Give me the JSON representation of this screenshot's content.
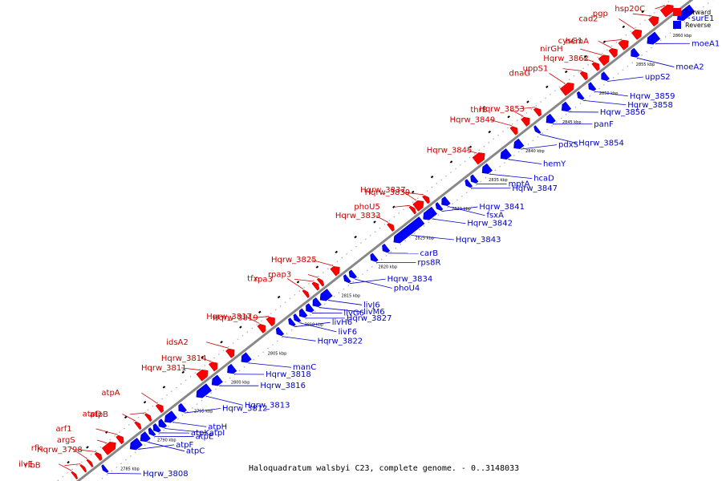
{
  "caption": "Haloquadratum walsbyi C23, complete genome. - 0..3148033",
  "legend": {
    "forward": {
      "label": "Forward",
      "color": "#ff0000"
    },
    "reverse": {
      "label": "Reverse",
      "color": "#0000ff"
    }
  },
  "colors": {
    "axis": "#888888",
    "fwd_line": "#cc0000",
    "rev_line": "#0000cc"
  },
  "ticks": [
    {
      "label": "2785 kbp",
      "kbp": 2785
    },
    {
      "label": "2790 kbp",
      "kbp": 2790
    },
    {
      "label": "2795 kbp",
      "kbp": 2795
    },
    {
      "label": "2800 kbp",
      "kbp": 2800
    },
    {
      "label": "2805 kbp",
      "kbp": 2805
    },
    {
      "label": "2810 kbp",
      "kbp": 2810
    },
    {
      "label": "2815 kbp",
      "kbp": 2815
    },
    {
      "label": "2820 kbp",
      "kbp": 2820
    },
    {
      "label": "2825 kbp",
      "kbp": 2825
    },
    {
      "label": "2830 kbp",
      "kbp": 2830
    },
    {
      "label": "2835 kbp",
      "kbp": 2835
    },
    {
      "label": "2840 kbp",
      "kbp": 2840
    },
    {
      "label": "2845 kbp",
      "kbp": 2845
    },
    {
      "label": "2850 kbp",
      "kbp": 2850
    },
    {
      "label": "2855 kbp",
      "kbp": 2855
    },
    {
      "label": "2860 kbp",
      "kbp": 2860
    }
  ],
  "forward_genes": [
    {
      "name": "hsp20C",
      "start": 2860.2,
      "end": 2861.6
    },
    {
      "name": "pgp",
      "start": 2858.6,
      "end": 2859.6
    },
    {
      "name": "cad2",
      "start": 2856.3,
      "end": 2857.3
    },
    {
      "name": "hemA",
      "start": 2854.5,
      "end": 2855.5
    },
    {
      "name": "cysG1",
      "start": 2853.2,
      "end": 2854.0
    },
    {
      "name": "nirGH",
      "start": 2851.8,
      "end": 2852.9
    },
    {
      "name": "Hqrw_3862",
      "start": 2850.9,
      "end": 2851.5
    },
    {
      "name": "uppS1",
      "start": 2849.3,
      "end": 2849.9
    },
    {
      "name": "dnaG",
      "start": 2846.6,
      "end": 2848.1
    },
    {
      "name": "Hqrw_3853",
      "start": 2843.0,
      "end": 2843.6
    },
    {
      "name": "thrB",
      "start": 2841.3,
      "end": 2842.1
    },
    {
      "name": "Hqrw_3849",
      "start": 2839.8,
      "end": 2840.4
    },
    {
      "name": "Hqrw_3845",
      "start": 2834.7,
      "end": 2836.0
    },
    {
      "name": "Hqrw_3839",
      "start": 2827.9,
      "end": 2828.4
    },
    {
      "name": "Hqrw_3837",
      "start": 2826.6,
      "end": 2827.7
    },
    {
      "name": "phoU5",
      "start": 2826.1,
      "end": 2826.5
    },
    {
      "name": "Hqrw_3833",
      "start": 2823.1,
      "end": 2823.6
    },
    {
      "name": "Hqrw_3825",
      "start": 2815.4,
      "end": 2816.3
    },
    {
      "name": "rpap3",
      "start": 2813.6,
      "end": 2814.0
    },
    {
      "name": "rpa3",
      "start": 2812.9,
      "end": 2813.4
    },
    {
      "name": "tfx",
      "start": 2811.6,
      "end": 2812.0
    },
    {
      "name": "Hqrw_3819",
      "start": 2806.7,
      "end": 2807.5
    },
    {
      "name": "Hqrw_3817",
      "start": 2805.5,
      "end": 2806.2
    },
    {
      "name": "idsA2",
      "start": 2801.2,
      "end": 2802.0
    },
    {
      "name": "Hqrw_3814",
      "start": 2798.9,
      "end": 2799.7
    },
    {
      "name": "Hqrw_3811",
      "start": 2797.2,
      "end": 2798.4
    },
    {
      "name": "atpA",
      "start": 2791.7,
      "end": 2792.3
    },
    {
      "name": "atpB",
      "start": 2790.2,
      "end": 2790.6
    },
    {
      "name": "atpD",
      "start": 2788.8,
      "end": 2789.2
    },
    {
      "name": "arf1",
      "start": 2786.3,
      "end": 2786.9
    },
    {
      "name": "argS",
      "start": 2784.4,
      "end": 2785.9
    },
    {
      "name": "Hqrw_3798",
      "start": 2783.4,
      "end": 2783.9
    },
    {
      "name": "rfk",
      "start": 2782.3,
      "end": 2782.6
    },
    {
      "name": "ribB",
      "start": 2781.4,
      "end": 2781.7
    },
    {
      "name": "ilvE",
      "start": 2780.2,
      "end": 2780.5
    }
  ],
  "reverse_genes": [
    {
      "name": "surE1",
      "start": 2861.0,
      "end": 2863.0
    },
    {
      "name": "moeA1",
      "start": 2856.9,
      "end": 2858.3
    },
    {
      "name": "moeA2",
      "start": 2854.7,
      "end": 2855.5
    },
    {
      "name": "uppS2",
      "start": 2850.7,
      "end": 2851.4
    },
    {
      "name": "Hqrw_3859",
      "start": 2849.0,
      "end": 2849.6
    },
    {
      "name": "Hqrw_3858",
      "start": 2847.5,
      "end": 2848.0
    },
    {
      "name": "Hqrw_3856",
      "start": 2845.3,
      "end": 2846.2
    },
    {
      "name": "panF",
      "start": 2843.2,
      "end": 2844.1
    },
    {
      "name": "Hqrw_3854",
      "start": 2841.7,
      "end": 2842.1
    },
    {
      "name": "pdxS",
      "start": 2838.8,
      "end": 2839.8
    },
    {
      "name": "hemY",
      "start": 2837.0,
      "end": 2838.1
    },
    {
      "name": "hcaD",
      "start": 2834.5,
      "end": 2835.5
    },
    {
      "name": "mptA",
      "start": 2833.0,
      "end": 2833.6
    },
    {
      "name": "Hqrw_3847",
      "start": 2832.3,
      "end": 2832.8
    },
    {
      "name": "fsxA",
      "start": 2829.0,
      "end": 2829.8
    },
    {
      "name": "Hqrw_3841",
      "start": 2828.3,
      "end": 2828.8
    },
    {
      "name": "Hqrw_3842",
      "start": 2826.5,
      "end": 2828.0
    },
    {
      "name": "Hqrw_3843",
      "start": 2822.5,
      "end": 2826.3
    },
    {
      "name": "carB",
      "start": 2821.0,
      "end": 2821.6
    },
    {
      "name": "rps8R",
      "start": 2819.4,
      "end": 2820.0
    },
    {
      "name": "phoU4",
      "start": 2816.5,
      "end": 2817.1
    },
    {
      "name": "Hqrw_3834",
      "start": 2815.8,
      "end": 2816.3
    },
    {
      "name": "livJ6",
      "start": 2812.5,
      "end": 2813.8
    },
    {
      "name": "livM6",
      "start": 2811.5,
      "end": 2812.3
    },
    {
      "name": "livG6",
      "start": 2810.6,
      "end": 2811.3
    },
    {
      "name": "Hqrw_3827",
      "start": 2809.7,
      "end": 2810.4
    },
    {
      "name": "livF6",
      "start": 2809.0,
      "end": 2809.5
    },
    {
      "name": "livH6",
      "start": 2808.3,
      "end": 2808.8
    },
    {
      "name": "Hqrw_3822",
      "start": 2806.6,
      "end": 2807.2
    },
    {
      "name": "manC",
      "start": 2801.8,
      "end": 2802.8
    },
    {
      "name": "Hqrw_3818",
      "start": 2799.9,
      "end": 2800.8
    },
    {
      "name": "Hqrw_3816",
      "start": 2797.8,
      "end": 2798.9
    },
    {
      "name": "Hqrw_3813",
      "start": 2795.7,
      "end": 2797.4
    },
    {
      "name": "Hqrw_3812",
      "start": 2793.3,
      "end": 2794.0
    },
    {
      "name": "atpH",
      "start": 2791.4,
      "end": 2792.7
    },
    {
      "name": "atpI",
      "start": 2790.6,
      "end": 2791.3
    },
    {
      "name": "atpK",
      "start": 2789.9,
      "end": 2790.5
    },
    {
      "name": "atpE",
      "start": 2789.3,
      "end": 2789.8
    },
    {
      "name": "atpC",
      "start": 2788.1,
      "end": 2789.1
    },
    {
      "name": "atpF",
      "start": 2786.7,
      "end": 2788.0
    },
    {
      "name": "Hqrw_3808",
      "start": 2783.0,
      "end": 2783.4
    }
  ]
}
